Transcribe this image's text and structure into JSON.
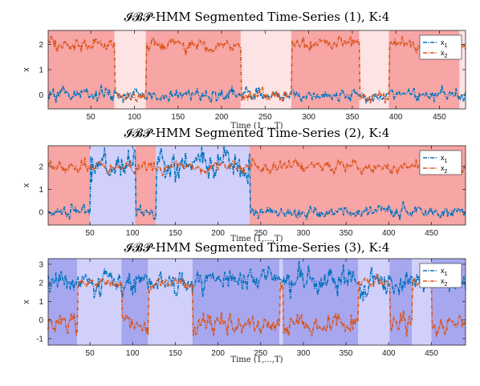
{
  "chart_data": [
    {
      "type": "line",
      "title": "𝓘𝓑𝓟-HMM Segmented Time-Series (1), K:4",
      "xlabel": "Time (1,...,T)",
      "ylabel": "x",
      "xlim": [
        1,
        480
      ],
      "ylim": [
        -0.55,
        2.55
      ],
      "xticks": [
        50,
        100,
        150,
        200,
        250,
        300,
        350,
        400,
        450
      ],
      "yticks": [
        0,
        1,
        2
      ],
      "legend": {
        "position": "top-right",
        "entries": [
          "x1",
          "x2"
        ]
      },
      "segments": [
        {
          "start": 1,
          "end": 77,
          "state": 1
        },
        {
          "start": 77,
          "end": 113,
          "state": 2
        },
        {
          "start": 113,
          "end": 222,
          "state": 1
        },
        {
          "start": 222,
          "end": 280,
          "state": 2
        },
        {
          "start": 280,
          "end": 358,
          "state": 1
        },
        {
          "start": 358,
          "end": 392,
          "state": 2
        },
        {
          "start": 392,
          "end": 473,
          "state": 1
        },
        {
          "start": 473,
          "end": 480,
          "state": 2
        }
      ],
      "series": [
        {
          "name": "x1",
          "color": "#0072bd",
          "levels": [
            {
              "start": 1,
              "end": 480,
              "mean": 0.0,
              "noise": 0.13
            }
          ]
        },
        {
          "name": "x2",
          "color": "#d95319",
          "levels": [
            {
              "start": 1,
              "end": 77,
              "mean": 2.0,
              "noise": 0.13
            },
            {
              "start": 77,
              "end": 113,
              "mean": -0.05,
              "noise": 0.13
            },
            {
              "start": 113,
              "end": 222,
              "mean": 2.0,
              "noise": 0.13
            },
            {
              "start": 222,
              "end": 280,
              "mean": -0.05,
              "noise": 0.13
            },
            {
              "start": 280,
              "end": 358,
              "mean": 2.0,
              "noise": 0.13
            },
            {
              "start": 358,
              "end": 392,
              "mean": -0.05,
              "noise": 0.13
            },
            {
              "start": 392,
              "end": 480,
              "mean": 2.0,
              "noise": 0.13
            }
          ]
        }
      ]
    },
    {
      "type": "line",
      "title": "𝓘𝓑𝓟-HMM Segmented Time-Series (2), K:4",
      "xlabel": "Time (1,...,T)",
      "ylabel": "x",
      "xlim": [
        1,
        490
      ],
      "ylim": [
        -0.55,
        2.9
      ],
      "xticks": [
        50,
        100,
        150,
        200,
        250,
        300,
        350,
        400,
        450
      ],
      "yticks": [
        0,
        1,
        2
      ],
      "legend": {
        "position": "top-right",
        "entries": [
          "x1",
          "x2"
        ]
      },
      "segments": [
        {
          "start": 1,
          "end": 50,
          "state": 1
        },
        {
          "start": 50,
          "end": 103,
          "state": 3
        },
        {
          "start": 103,
          "end": 127,
          "state": 1
        },
        {
          "start": 127,
          "end": 237,
          "state": 3
        },
        {
          "start": 237,
          "end": 490,
          "state": 1
        }
      ],
      "series": [
        {
          "name": "x1",
          "color": "#0072bd",
          "levels": [
            {
              "start": 1,
              "end": 50,
              "mean": 0.0,
              "noise": 0.13
            },
            {
              "start": 50,
              "end": 103,
              "mean": 2.0,
              "noise": 0.35
            },
            {
              "start": 103,
              "end": 127,
              "mean": 0.0,
              "noise": 0.13
            },
            {
              "start": 127,
              "end": 237,
              "mean": 2.0,
              "noise": 0.35
            },
            {
              "start": 237,
              "end": 490,
              "mean": 0.0,
              "noise": 0.13
            }
          ]
        },
        {
          "name": "x2",
          "color": "#d95319",
          "levels": [
            {
              "start": 1,
              "end": 490,
              "mean": 2.0,
              "noise": 0.13
            }
          ]
        }
      ]
    },
    {
      "type": "line",
      "title": "𝓘𝓑𝓟-HMM Segmented Time-Series (3), K:4",
      "xlabel": "Time (1,...,T)",
      "ylabel": "x",
      "xlim": [
        1,
        490
      ],
      "ylim": [
        -1.35,
        3.3
      ],
      "xticks": [
        50,
        100,
        150,
        200,
        250,
        300,
        350,
        400,
        450
      ],
      "yticks": [
        -1,
        0,
        1,
        2,
        3
      ],
      "legend": {
        "position": "top-right",
        "entries": [
          "x1",
          "x2"
        ]
      },
      "segments": [
        {
          "start": 1,
          "end": 35,
          "state": 4
        },
        {
          "start": 35,
          "end": 87,
          "state": 3
        },
        {
          "start": 87,
          "end": 118,
          "state": 4
        },
        {
          "start": 118,
          "end": 170,
          "state": 3
        },
        {
          "start": 170,
          "end": 272,
          "state": 4
        },
        {
          "start": 272,
          "end": 276,
          "state": 3
        },
        {
          "start": 276,
          "end": 364,
          "state": 4
        },
        {
          "start": 364,
          "end": 401,
          "state": 3
        },
        {
          "start": 401,
          "end": 427,
          "state": 4
        },
        {
          "start": 427,
          "end": 450,
          "state": 3
        },
        {
          "start": 450,
          "end": 490,
          "state": 4
        }
      ],
      "series": [
        {
          "name": "x1",
          "color": "#0072bd",
          "levels": [
            {
              "start": 1,
              "end": 490,
              "mean": 2.05,
              "noise": 0.33
            }
          ]
        },
        {
          "name": "x2",
          "color": "#d95319",
          "levels": [
            {
              "start": 1,
              "end": 35,
              "mean": -0.2,
              "noise": 0.3
            },
            {
              "start": 35,
              "end": 87,
              "mean": 2.0,
              "noise": 0.13
            },
            {
              "start": 87,
              "end": 118,
              "mean": -0.2,
              "noise": 0.3
            },
            {
              "start": 118,
              "end": 170,
              "mean": 2.0,
              "noise": 0.13
            },
            {
              "start": 170,
              "end": 272,
              "mean": -0.2,
              "noise": 0.3
            },
            {
              "start": 272,
              "end": 276,
              "mean": 2.0,
              "noise": 0.13
            },
            {
              "start": 276,
              "end": 364,
              "mean": -0.2,
              "noise": 0.3
            },
            {
              "start": 364,
              "end": 401,
              "mean": 2.0,
              "noise": 0.13
            },
            {
              "start": 401,
              "end": 427,
              "mean": -0.2,
              "noise": 0.3
            },
            {
              "start": 427,
              "end": 450,
              "mean": 2.0,
              "noise": 0.13
            },
            {
              "start": 450,
              "end": 490,
              "mean": -0.2,
              "noise": 0.3
            }
          ]
        }
      ]
    }
  ],
  "state_colors": {
    "1": "#f7a5a5",
    "2": "#fde3e3",
    "3": "#d0d0fa",
    "4": "#a7a7ef"
  },
  "legend_labels": {
    "x1": "x",
    "x1_sub": "1",
    "x2": "x",
    "x2_sub": "2"
  }
}
